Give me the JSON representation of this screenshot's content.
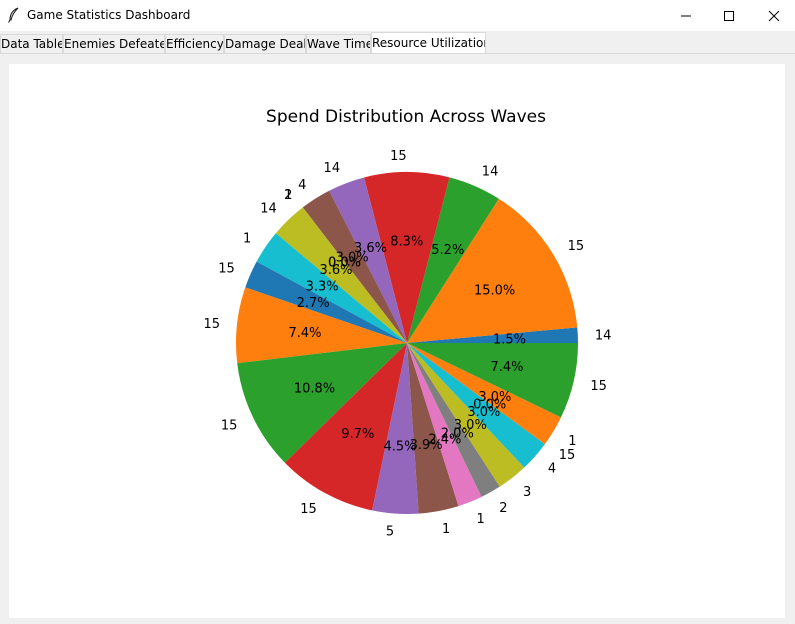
{
  "window": {
    "title": "Game Statistics Dashboard"
  },
  "tabs": [
    {
      "label": "Data Table",
      "active": false
    },
    {
      "label": "Enemies Defeated",
      "active": false
    },
    {
      "label": "Efficiency",
      "active": false
    },
    {
      "label": "Damage Dealt",
      "active": false
    },
    {
      "label": "Wave Time",
      "active": false
    },
    {
      "label": "Resource Utilization",
      "active": true
    }
  ],
  "chart_data": {
    "type": "pie",
    "title": "Spend Distribution Across Waves",
    "start_angle_deg": 0,
    "direction": "counterclockwise",
    "labels": [
      "14",
      "15",
      "14",
      "15",
      "14",
      "4",
      "2",
      "1",
      "14",
      "1",
      "15",
      "15",
      "15",
      "15",
      "5",
      "1",
      "1",
      "2",
      "3",
      "4",
      "15",
      "1",
      "15"
    ],
    "percent_labels": [
      "1.5%",
      "15.0%",
      "5.2%",
      "8.3%",
      "3.6%",
      "3.0%",
      "0.0%",
      "0.0%",
      "3.6%",
      "3.3%",
      "2.7%",
      "7.4%",
      "10.8%",
      "9.7%",
      "4.5%",
      "3.9%",
      "2.4%",
      "2.0%",
      "3.0%",
      "3.0%",
      "0.0%",
      "3.0%",
      "7.4%"
    ],
    "values": [
      1.5,
      15.0,
      5.2,
      8.3,
      3.6,
      3.0,
      0.0,
      0.0,
      3.6,
      3.3,
      2.7,
      7.4,
      10.8,
      9.7,
      4.5,
      3.9,
      2.4,
      2.0,
      3.0,
      3.0,
      0.0,
      3.0,
      7.4
    ],
    "colors": [
      "#1f77b4",
      "#ff7f0e",
      "#2ca02c",
      "#d62728",
      "#9467bd",
      "#8c564b",
      "#e377c2",
      "#7f7f7f",
      "#bcbd22",
      "#17becf"
    ]
  }
}
